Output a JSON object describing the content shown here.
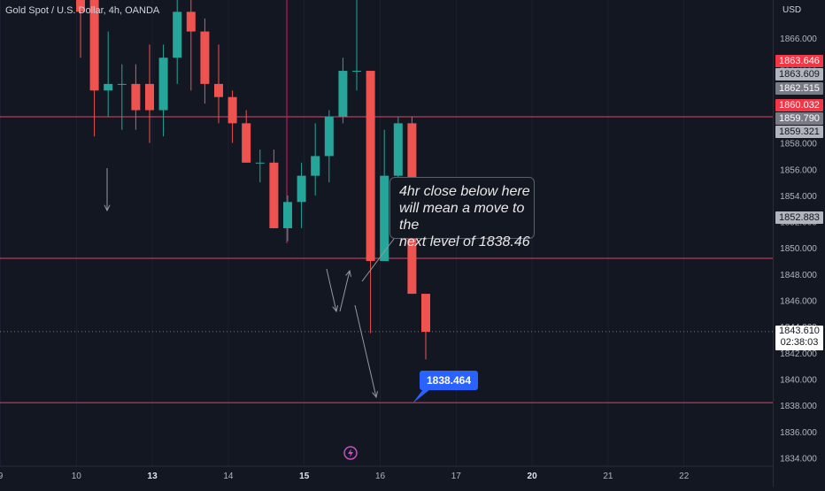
{
  "header": {
    "instrument": "Gold Spot / U.S. Dollar, 4h, OANDA"
  },
  "price_axis": {
    "currency": "USD",
    "ticks": [
      "1866.000",
      "1864.000",
      "1862.000",
      "1860.000",
      "1858.000",
      "1856.000",
      "1854.000",
      "1852.000",
      "1850.000",
      "1848.000",
      "1846.000",
      "1844.000",
      "1842.000",
      "1840.000",
      "1838.000",
      "1836.000",
      "1834.000"
    ],
    "badges": [
      {
        "label": "1863.646",
        "value": 1863.646,
        "bg": "#f23645",
        "fg": "#ffffff"
      },
      {
        "label": "1863.609",
        "value": 1863.609,
        "bg": "#b2b5be",
        "fg": "#131722"
      },
      {
        "label": "1862.515",
        "value": 1862.515,
        "bg": "#787b86",
        "fg": "#ffffff"
      },
      {
        "label": "1860.032",
        "value": 1860.032,
        "bg": "#f23645",
        "fg": "#ffffff"
      },
      {
        "label": "1859.790",
        "value": 1859.79,
        "bg": "#787b86",
        "fg": "#ffffff"
      },
      {
        "label": "1859.321",
        "value": 1859.321,
        "bg": "#b2b5be",
        "fg": "#131722"
      },
      {
        "label": "1852.883",
        "value": 1852.883,
        "bg": "#b2b5be",
        "fg": "#131722"
      }
    ],
    "current": {
      "price": "1843.610",
      "countdown": "02:38:03",
      "value": 1843.61
    }
  },
  "time_axis": {
    "labels": [
      {
        "text": "9",
        "index": -5.8,
        "bold": false
      },
      {
        "text": "10",
        "index": -0.3,
        "bold": false
      },
      {
        "text": "13",
        "index": 5.2,
        "bold": true
      },
      {
        "text": "14",
        "index": 10.7,
        "bold": false
      },
      {
        "text": "15",
        "index": 16.2,
        "bold": true
      },
      {
        "text": "16",
        "index": 21.7,
        "bold": false
      },
      {
        "text": "17",
        "index": 27.2,
        "bold": false
      },
      {
        "text": "20",
        "index": 32.7,
        "bold": true
      },
      {
        "text": "21",
        "index": 38.2,
        "bold": false
      },
      {
        "text": "22",
        "index": 43.7,
        "bold": false
      }
    ]
  },
  "annotations": {
    "callout_lines": [
      "4hr close below here",
      "will mean a move to the",
      "next level of 1838.46"
    ],
    "target_label": "1838.464"
  },
  "colors": {
    "bull": "#26a69a",
    "bear": "#ef5350",
    "level": "#e0446a",
    "background": "#131722",
    "current_line": "#787b86"
  },
  "chart_data": {
    "type": "candlestick",
    "title": "Gold Spot / U.S. Dollar, 4h, OANDA",
    "ylabel": "USD",
    "ylim": [
      1833.6,
      1870.7
    ],
    "horizontal_levels": [
      1860.0,
      1849.2,
      1838.2
    ],
    "current_price": 1843.61,
    "candles": [
      {
        "o": 1869.0,
        "h": 1870.0,
        "l": 1864.5,
        "c": 1868.0
      },
      {
        "o": 1869.0,
        "h": 1870.5,
        "l": 1858.5,
        "c": 1862.0
      },
      {
        "o": 1862.0,
        "h": 1866.5,
        "l": 1860.0,
        "c": 1862.5
      },
      {
        "o": 1862.5,
        "h": 1864.0,
        "l": 1859.0,
        "c": 1862.5
      },
      {
        "o": 1862.5,
        "h": 1864.0,
        "l": 1859.0,
        "c": 1860.5
      },
      {
        "o": 1862.5,
        "h": 1865.5,
        "l": 1858.0,
        "c": 1860.5
      },
      {
        "o": 1860.5,
        "h": 1865.5,
        "l": 1858.5,
        "c": 1864.5
      },
      {
        "o": 1864.5,
        "h": 1869.0,
        "l": 1862.5,
        "c": 1868.0
      },
      {
        "o": 1868.0,
        "h": 1869.5,
        "l": 1862.0,
        "c": 1866.5
      },
      {
        "o": 1866.5,
        "h": 1867.5,
        "l": 1861.0,
        "c": 1862.5
      },
      {
        "o": 1862.5,
        "h": 1865.5,
        "l": 1859.5,
        "c": 1861.5
      },
      {
        "o": 1861.5,
        "h": 1862.0,
        "l": 1858.0,
        "c": 1859.5
      },
      {
        "o": 1859.5,
        "h": 1860.5,
        "l": 1856.5,
        "c": 1856.5
      },
      {
        "o": 1856.5,
        "h": 1857.5,
        "l": 1855.0,
        "c": 1856.5
      },
      {
        "o": 1856.5,
        "h": 1857.5,
        "l": 1851.5,
        "c": 1851.5
      },
      {
        "o": 1851.5,
        "h": 1854.0,
        "l": 1850.5,
        "c": 1853.5
      },
      {
        "o": 1853.5,
        "h": 1856.5,
        "l": 1851.5,
        "c": 1855.5
      },
      {
        "o": 1855.5,
        "h": 1859.5,
        "l": 1854.0,
        "c": 1857.0
      },
      {
        "o": 1857.0,
        "h": 1860.5,
        "l": 1855.0,
        "c": 1860.0
      },
      {
        "o": 1860.0,
        "h": 1864.5,
        "l": 1859.5,
        "c": 1863.5
      },
      {
        "o": 1863.5,
        "h": 1869.5,
        "l": 1862.0,
        "c": 1863.5
      },
      {
        "o": 1863.5,
        "h": 1863.5,
        "l": 1843.5,
        "c": 1849.0
      },
      {
        "o": 1849.0,
        "h": 1859.0,
        "l": 1849.0,
        "c": 1855.5
      },
      {
        "o": 1855.5,
        "h": 1860.0,
        "l": 1853.0,
        "c": 1859.5
      },
      {
        "o": 1859.5,
        "h": 1860.0,
        "l": 1846.5,
        "c": 1846.5
      },
      {
        "o": 1846.5,
        "h": 1846.5,
        "l": 1841.5,
        "c": 1843.6
      }
    ]
  }
}
